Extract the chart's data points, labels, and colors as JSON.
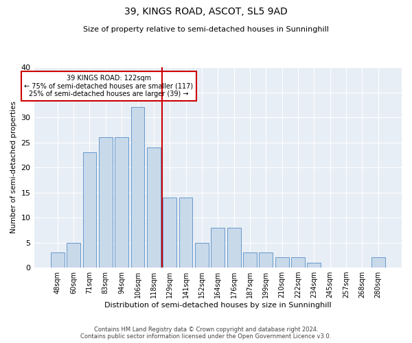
{
  "title": "39, KINGS ROAD, ASCOT, SL5 9AD",
  "subtitle": "Size of property relative to semi-detached houses in Sunninghill",
  "xlabel": "Distribution of semi-detached houses by size in Sunninghill",
  "ylabel": "Number of semi-detached properties",
  "bar_labels": [
    "48sqm",
    "60sqm",
    "71sqm",
    "83sqm",
    "94sqm",
    "106sqm",
    "118sqm",
    "129sqm",
    "141sqm",
    "152sqm",
    "164sqm",
    "176sqm",
    "187sqm",
    "199sqm",
    "210sqm",
    "222sqm",
    "234sqm",
    "245sqm",
    "257sqm",
    "268sqm",
    "280sqm"
  ],
  "bar_values": [
    3,
    5,
    23,
    26,
    26,
    32,
    24,
    14,
    14,
    5,
    8,
    8,
    3,
    3,
    2,
    2,
    1,
    0,
    0,
    0,
    2
  ],
  "bar_color": "#c8d9ea",
  "bar_edge_color": "#6699cc",
  "vline_x_index": 6.5,
  "vline_color": "#cc0000",
  "annotation_box_color": "#cc0000",
  "ylim": [
    0,
    40
  ],
  "yticks": [
    0,
    5,
    10,
    15,
    20,
    25,
    30,
    35,
    40
  ],
  "background_color": "#e8eef5",
  "footer_line1": "Contains HM Land Registry data © Crown copyright and database right 2024.",
  "footer_line2": "Contains public sector information licensed under the Open Government Licence v3.0."
}
